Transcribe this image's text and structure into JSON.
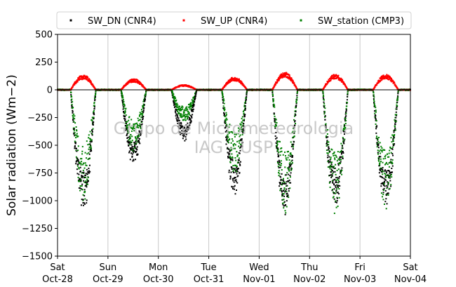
{
  "chart_data": {
    "type": "scatter",
    "ylabel": "Solar radiation (Wm−2)",
    "ylim": [
      -1500,
      500
    ],
    "yticks": [
      500,
      250,
      0,
      -250,
      -500,
      -750,
      -1000,
      -1250,
      -1500
    ],
    "xlim": [
      "2023-10-28",
      "2023-11-04"
    ],
    "xticks": [
      {
        "date": "2023-10-28",
        "day": "Sat",
        "label": "Oct-28"
      },
      {
        "date": "2023-10-29",
        "day": "Sun",
        "label": "Oct-29"
      },
      {
        "date": "2023-10-30",
        "day": "Mon",
        "label": "Oct-30"
      },
      {
        "date": "2023-10-31",
        "day": "Tue",
        "label": "Oct-31"
      },
      {
        "date": "2023-11-01",
        "day": "Wed",
        "label": "Nov-01"
      },
      {
        "date": "2023-11-02",
        "day": "Thu",
        "label": "Nov-02"
      },
      {
        "date": "2023-11-03",
        "day": "Fri",
        "label": "Nov-03"
      },
      {
        "date": "2023-11-04",
        "day": "Sat",
        "label": "Nov-04"
      }
    ],
    "grid": "vertical",
    "legend_position": "top",
    "watermark": [
      "Grupo de Micrometeorologia",
      "IAG - USP"
    ],
    "series": [
      {
        "name": "SW_DN (CNR4)",
        "color": "#000000",
        "daily_peaks": [
          {
            "date": "2023-10-28",
            "min": -1120
          },
          {
            "date": "2023-10-29",
            "min": -700
          },
          {
            "date": "2023-10-30",
            "min": -470
          },
          {
            "date": "2023-10-31",
            "min": -970
          },
          {
            "date": "2023-11-01",
            "min": -1150
          },
          {
            "date": "2023-11-02",
            "min": -1090
          },
          {
            "date": "2023-11-03",
            "min": -1110
          }
        ]
      },
      {
        "name": "SW_UP (CNR4)",
        "color": "#ff0000",
        "daily_peaks": [
          {
            "date": "2023-10-28",
            "max": 135
          },
          {
            "date": "2023-10-29",
            "max": 100
          },
          {
            "date": "2023-10-30",
            "max": 45
          },
          {
            "date": "2023-10-31",
            "max": 115
          },
          {
            "date": "2023-11-01",
            "max": 160
          },
          {
            "date": "2023-11-02",
            "max": 140
          },
          {
            "date": "2023-11-03",
            "max": 140
          }
        ]
      },
      {
        "name": "SW_station (CMP3)",
        "color": "#008000",
        "daily_peaks": [
          {
            "date": "2023-10-28",
            "min": -1010
          },
          {
            "date": "2023-10-29",
            "min": -560
          },
          {
            "date": "2023-10-30",
            "min": -290
          },
          {
            "date": "2023-10-31",
            "min": -760
          },
          {
            "date": "2023-11-01",
            "min": -1120
          },
          {
            "date": "2023-11-02",
            "min": -1130
          },
          {
            "date": "2023-11-03",
            "min": -1080
          }
        ]
      }
    ]
  }
}
